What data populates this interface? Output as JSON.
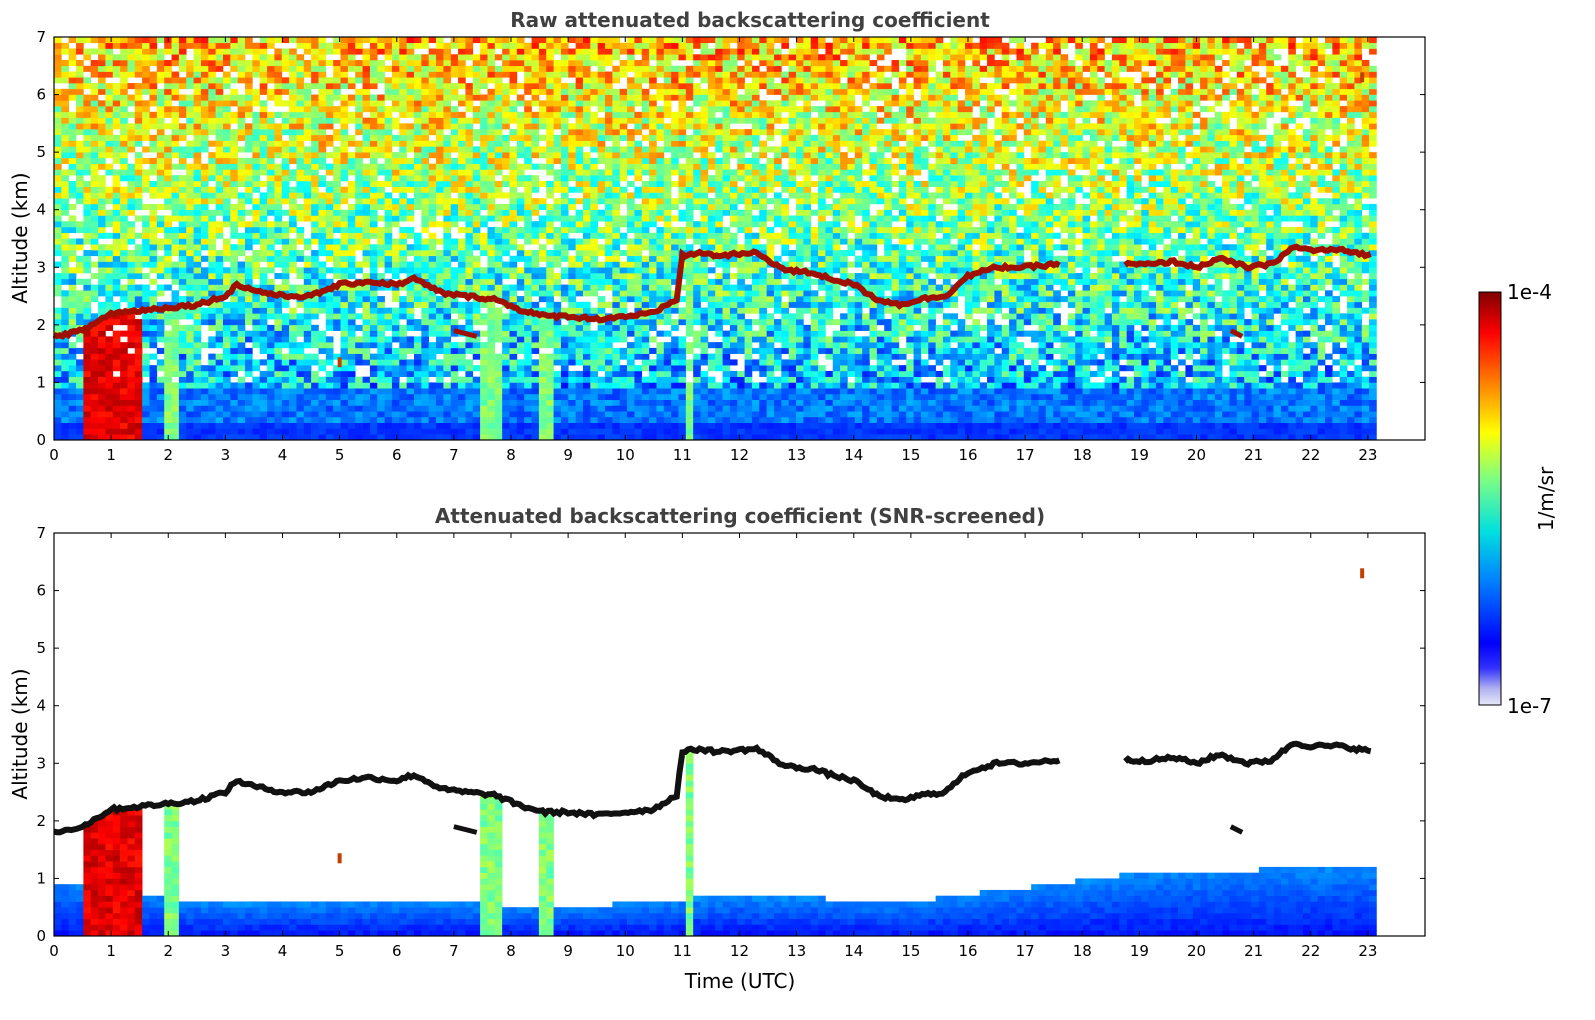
{
  "chart_data": [
    {
      "type": "heatmap",
      "title": "Raw attenuated backscattering coefficient",
      "xlabel": "",
      "ylabel": "Altitude (km)",
      "xlim": [
        0,
        24
      ],
      "ylim": [
        0,
        7
      ],
      "xticks": [
        "0",
        "1",
        "2",
        "3",
        "4",
        "5",
        "6",
        "7",
        "8",
        "9",
        "10",
        "11",
        "12",
        "13",
        "14",
        "15",
        "16",
        "17",
        "18",
        "19",
        "20",
        "21",
        "22",
        "23"
      ],
      "yticks": [
        "0",
        "1",
        "2",
        "3",
        "4",
        "5",
        "6",
        "7"
      ],
      "data_end_time": 23.15,
      "colorscale": "jet",
      "colorbar": {
        "label": "1/m/sr",
        "min_label": "1e-7",
        "max_label": "1e-4",
        "min": 1e-07,
        "max": 0.0001,
        "scale": "log"
      },
      "cloud_base_km": [
        [
          0.0,
          1.8
        ],
        [
          0.5,
          1.9
        ],
        [
          1.0,
          2.2
        ],
        [
          2.0,
          2.3
        ],
        [
          2.5,
          2.35
        ],
        [
          3.0,
          2.5
        ],
        [
          3.2,
          2.7
        ],
        [
          3.5,
          2.6
        ],
        [
          4.0,
          2.5
        ],
        [
          4.5,
          2.5
        ],
        [
          5.0,
          2.7
        ],
        [
          5.5,
          2.75
        ],
        [
          6.0,
          2.7
        ],
        [
          6.3,
          2.8
        ],
        [
          6.8,
          2.55
        ],
        [
          7.2,
          2.5
        ],
        [
          7.7,
          2.45
        ],
        [
          8.2,
          2.25
        ],
        [
          8.6,
          2.15
        ],
        [
          9.0,
          2.15
        ],
        [
          9.5,
          2.1
        ],
        [
          10.0,
          2.15
        ],
        [
          10.5,
          2.2
        ],
        [
          10.9,
          2.45
        ],
        [
          11.0,
          3.2
        ],
        [
          11.3,
          3.25
        ],
        [
          11.6,
          3.2
        ],
        [
          12.3,
          3.25
        ],
        [
          12.8,
          2.95
        ],
        [
          13.3,
          2.9
        ],
        [
          13.6,
          2.8
        ],
        [
          14.0,
          2.7
        ],
        [
          14.4,
          2.45
        ],
        [
          14.8,
          2.35
        ],
        [
          15.2,
          2.45
        ],
        [
          15.6,
          2.5
        ],
        [
          16.0,
          2.85
        ],
        [
          16.5,
          3.0
        ],
        [
          17.0,
          3.0
        ],
        [
          17.5,
          3.05
        ],
        [
          18.8,
          3.05
        ],
        [
          19.2,
          3.05
        ],
        [
          19.6,
          3.1
        ],
        [
          20.0,
          3.0
        ],
        [
          20.4,
          3.15
        ],
        [
          20.9,
          3.0
        ],
        [
          21.3,
          3.05
        ],
        [
          21.7,
          3.35
        ],
        [
          22.0,
          3.3
        ],
        [
          22.5,
          3.3
        ],
        [
          23.1,
          3.2
        ]
      ],
      "cloud_gaps_hours": [
        [
          17.65,
          18.75
        ]
      ],
      "rain_shafts_hours": [
        [
          0.5,
          1.6
        ],
        [
          1.9,
          2.2
        ],
        [
          7.5,
          7.9
        ],
        [
          8.5,
          8.7
        ],
        [
          11.05,
          11.25
        ]
      ],
      "boundary_layer_top_km": 0.9,
      "low_cloud_segments": [
        [
          7.0,
          7.4,
          1.8
        ],
        [
          20.6,
          20.8,
          1.8
        ]
      ],
      "isolated_echo": [
        [
          5.0,
          1.35
        ],
        [
          22.9,
          6.3
        ]
      ]
    },
    {
      "type": "heatmap",
      "title": "Attenuated backscattering coefficient (SNR-screened)",
      "xlabel": "Time (UTC)",
      "ylabel": "Altitude (km)",
      "xlim": [
        0,
        24
      ],
      "ylim": [
        0,
        7
      ],
      "xticks": [
        "0",
        "1",
        "2",
        "3",
        "4",
        "5",
        "6",
        "7",
        "8",
        "9",
        "10",
        "11",
        "12",
        "13",
        "14",
        "15",
        "16",
        "17",
        "18",
        "19",
        "20",
        "21",
        "22",
        "23"
      ],
      "yticks": [
        "0",
        "1",
        "2",
        "3",
        "4",
        "5",
        "6",
        "7"
      ],
      "data_end_time": 23.15,
      "colorscale": "jet",
      "screened_background": "white",
      "boundary_layer_top_km": [
        [
          0.0,
          0.95
        ],
        [
          3.0,
          0.55
        ],
        [
          6.0,
          0.6
        ],
        [
          9.0,
          0.5
        ],
        [
          12.0,
          0.7
        ],
        [
          15.0,
          0.6
        ],
        [
          17.5,
          0.9
        ],
        [
          19.0,
          1.1
        ],
        [
          23.15,
          1.2
        ]
      ]
    }
  ]
}
